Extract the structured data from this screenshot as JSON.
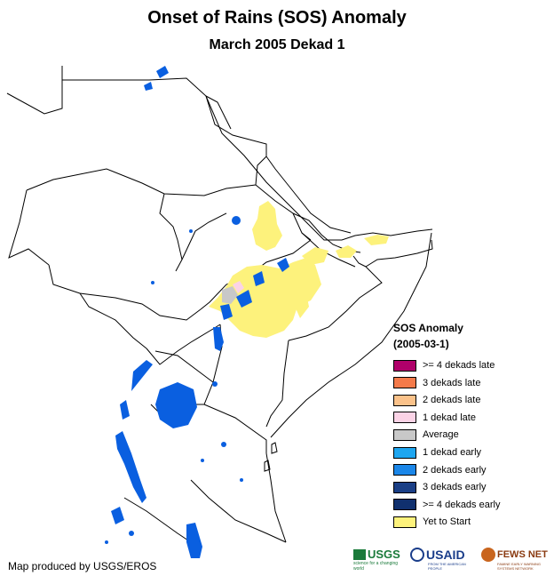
{
  "title": "Onset of Rains (SOS) Anomaly",
  "subtitle": "March 2005 Dekad 1",
  "legend": {
    "title": "SOS Anomaly",
    "date": "(2005-03-1)",
    "items": [
      {
        "label": ">= 4 dekads late",
        "color": "#b0006a"
      },
      {
        "label": "3 dekads late",
        "color": "#f47a4a"
      },
      {
        "label": "2 dekads late",
        "color": "#fbc28a"
      },
      {
        "label": "1 dekad late",
        "color": "#fbd3e6"
      },
      {
        "label": "Average",
        "color": "#c8c8c8"
      },
      {
        "label": "1 dekad early",
        "color": "#1ea6f0"
      },
      {
        "label": "2 dekads early",
        "color": "#1a86e8"
      },
      {
        "label": "3 dekads early",
        "color": "#1a3f86"
      },
      {
        "label": ">= 4 dekads early",
        "color": "#10306e"
      },
      {
        "label": "Yet to Start",
        "color": "#fdf27c"
      }
    ]
  },
  "credit": "Map produced by USGS/EROS",
  "logos": {
    "usgs": "USGS",
    "usgs_tagline": "science for a changing world",
    "usaid": "USAID",
    "usaid_tagline": "FROM THE AMERICAN PEOPLE",
    "fewsnet": "FEWS NET",
    "fewsnet_tagline": "FAMINE EARLY WARNING SYSTEMS NETWORK"
  },
  "colors": {
    "water": "#0a5fe0",
    "yet_to_start": "#fdf27c",
    "border": "#000000"
  }
}
